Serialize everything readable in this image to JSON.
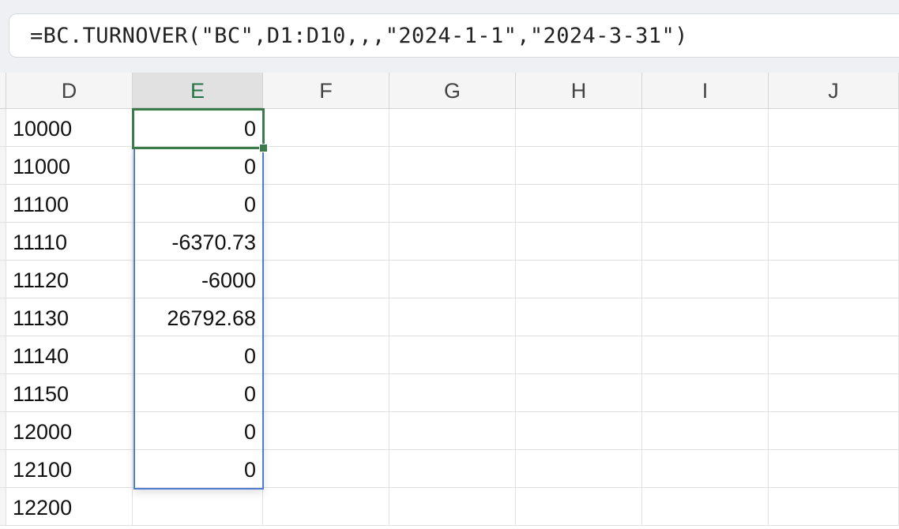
{
  "formula_bar": {
    "formula": "=BC.TURNOVER(\"BC\",D1:D10,,,\"2024-1-1\",\"2024-3-31\")"
  },
  "columns": [
    "D",
    "E",
    "F",
    "G",
    "H",
    "I",
    "J"
  ],
  "selected_column": "E",
  "rows": [
    {
      "D": "10000",
      "E": "0"
    },
    {
      "D": "11000",
      "E": "0"
    },
    {
      "D": "11100",
      "E": "0"
    },
    {
      "D": "11110",
      "E": "-6370.73"
    },
    {
      "D": "11120",
      "E": "-6000"
    },
    {
      "D": "11130",
      "E": "26792.68"
    },
    {
      "D": "11140",
      "E": "0"
    },
    {
      "D": "11150",
      "E": "0"
    },
    {
      "D": "12000",
      "E": "0"
    },
    {
      "D": "12100",
      "E": "0"
    },
    {
      "D": "12200",
      "E": ""
    }
  ],
  "colors": {
    "active_cell": "#3b7a4a",
    "range_border": "#4f7bd0",
    "header_selected_text": "#217346"
  }
}
